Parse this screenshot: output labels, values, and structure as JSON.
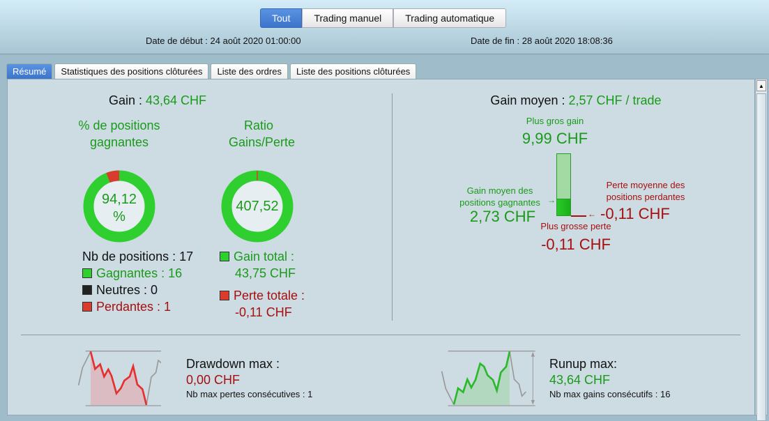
{
  "filter": {
    "options": [
      "Tout",
      "Trading manuel",
      "Trading automatique"
    ],
    "selected": "Tout"
  },
  "dates": {
    "start": "Date de début : 24 août 2020 01:00:00",
    "end": "Date de fin : 28 août 2020 18:08:36"
  },
  "tabs": [
    "Résumé",
    "Statistiques des positions clôturées",
    "Liste des ordres",
    "Liste des positions clôturées"
  ],
  "active_tab": "Résumé",
  "gain": {
    "label": "Gain :",
    "value": "43,64 CHF"
  },
  "win_pct": {
    "title": "% de positions gagnantes",
    "value": "94,12 %",
    "fraction": 0.9412
  },
  "ratio": {
    "title": "Ratio Gains/Perte",
    "value": "407,52",
    "loss_fraction": 0.0025
  },
  "positions": {
    "total": "Nb de positions : 17",
    "winners": "Gagnantes : 16",
    "neutral": "Neutres : 0",
    "losers": "Perdantes : 1"
  },
  "totals": {
    "gain_label": "Gain total :",
    "gain_value": "43,75 CHF",
    "loss_label": "Perte totale :",
    "loss_value": "-0,11 CHF"
  },
  "avg": {
    "label": "Gain moyen :",
    "value": "2,57 CHF / trade",
    "max_gain_label": "Plus gros gain",
    "max_gain": "9,99 CHF",
    "avg_win_label": "Gain moyen des positions gagnantes",
    "avg_win": "2,73 CHF",
    "avg_loss_label": "Perte moyenne des positions perdantes",
    "avg_loss": "-0,11 CHF",
    "max_loss_label": "Plus grosse perte",
    "max_loss": "-0,11 CHF"
  },
  "drawdown": {
    "label": "Drawdown max :",
    "value": "0,00 CHF",
    "sub": "Nb max pertes consécutives : 1"
  },
  "runup": {
    "label": "Runup max:",
    "value": "43,64 CHF",
    "sub": "Nb max gains consécutifs : 16"
  },
  "colors": {
    "gain": "#1a9a1a",
    "loss": "#a50f0f",
    "accent": "#3b75cc"
  }
}
